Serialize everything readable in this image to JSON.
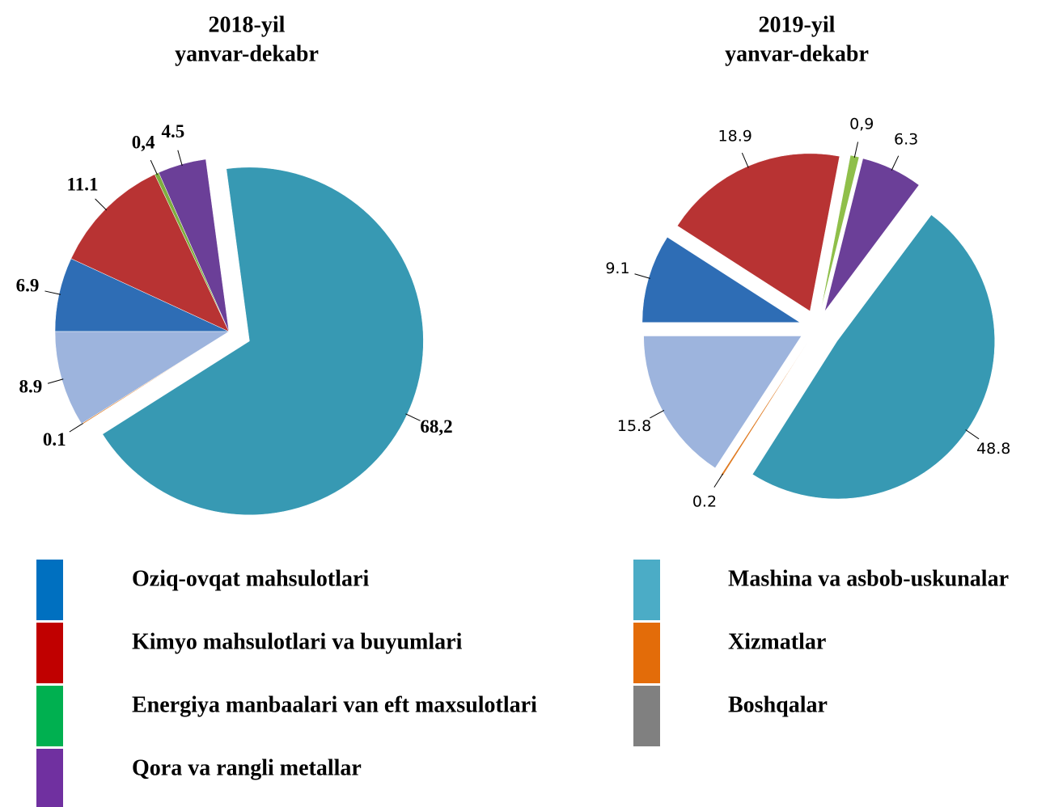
{
  "chart_data": [
    {
      "type": "pie",
      "title": [
        "2018-yil",
        "yanvar-dekabr"
      ],
      "values": [
        6.9,
        11.1,
        0.4,
        4.5,
        68.2,
        0.1,
        8.9
      ],
      "value_labels": [
        "6.9",
        "11.1",
        "0,4",
        "4.5",
        "68,2",
        "0.1",
        "8.9"
      ],
      "colors": [
        "#2e6db5",
        "#b83333",
        "#7fae3f",
        "#6b3f98",
        "#3799b3",
        "#e07b22",
        "#9db4dd"
      ]
    },
    {
      "type": "pie",
      "title": [
        "2019-yil",
        "yanvar-dekabr"
      ],
      "values": [
        9.1,
        18.9,
        0.9,
        6.3,
        48.8,
        0.2,
        15.8
      ],
      "value_labels": [
        "9.1",
        "18.9",
        "0,9",
        "6.3",
        "48.8",
        "0.2",
        "15.8"
      ],
      "colors": [
        "#2e6db5",
        "#b83333",
        "#8fbf4a",
        "#6b3f98",
        "#3799b3",
        "#e07b22",
        "#9db4dd"
      ]
    }
  ],
  "legend": {
    "categories": [
      "Oziq-ovqat mahsulotlari",
      "Kimyo mahsulotlari va buyumlari",
      "Energiya manbaalari van eft maxsulotlari",
      "Qora va rangli metallar",
      "Mashina va asbob-uskunalar",
      "Xizmatlar",
      "Boshqalar"
    ],
    "colors": [
      "#0070c0",
      "#c00000",
      "#00b050",
      "#7030a0",
      "#4bacc6",
      "#e36c09",
      "#808080"
    ]
  }
}
